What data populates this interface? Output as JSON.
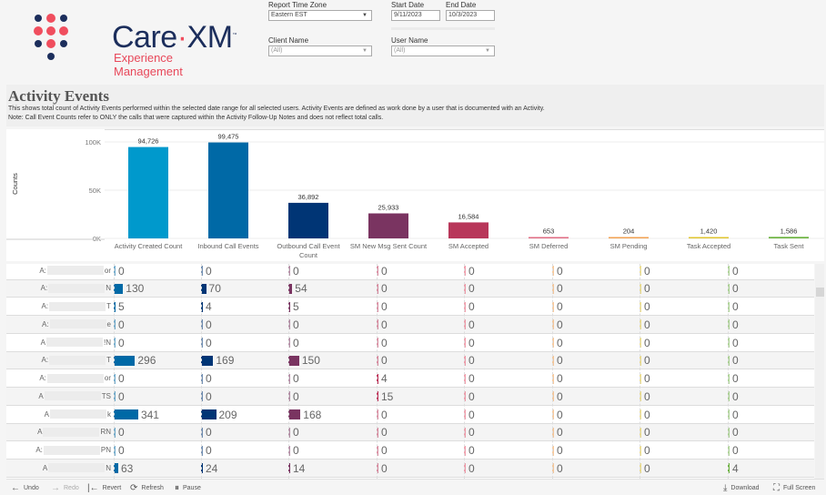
{
  "logo": {
    "word_a": "Care",
    "word_sep": "·",
    "word_b": "XM",
    "tm": "™",
    "subtitle": "Experience Management"
  },
  "filters": {
    "time_zone": {
      "label": "Report Time Zone",
      "value": "Eastern EST"
    },
    "start_date": {
      "label": "Start Date",
      "value": "9/11/2023"
    },
    "end_date": {
      "label": "End Date",
      "value": "10/3/2023"
    },
    "client": {
      "label": "Client Name",
      "value": "(All)"
    },
    "user": {
      "label": "User Name",
      "value": "(All)"
    }
  },
  "header": {
    "title": "Activity Events",
    "line1": "This shows total count of Activity Events performed within the selected date range for all selected users. Activity Events are defined as work done by a user that is documented with an Activity.",
    "line2": "Note: Call Event Counts refer to ONLY the calls that were captured within the Activity Follow-Up Notes and does not reflect total calls."
  },
  "chart_data": {
    "type": "bar",
    "ylabel": "Counts",
    "ylim": [
      0,
      100000
    ],
    "yticks": [
      {
        "v": 0,
        "label": "0K"
      },
      {
        "v": 50000,
        "label": "50K"
      },
      {
        "v": 100000,
        "label": "100K"
      }
    ],
    "grid": true,
    "categories": [
      "Activity Created Count",
      "Inbound Call Events",
      "Outbound Call Event Count",
      "SM New Msg Sent Count",
      "SM Accepted",
      "SM Deferred",
      "SM Pending",
      "Task Accepted",
      "Task Sent"
    ],
    "values": [
      94726,
      99475,
      36892,
      25933,
      16584,
      653,
      204,
      1420,
      1586
    ],
    "labels": [
      "94,726",
      "99,475",
      "36,892",
      "25,933",
      "16,584",
      "653",
      "204",
      "1,420",
      "1,586"
    ],
    "colors": [
      "#0099cc",
      "#0069a6",
      "#003575",
      "#7a3461",
      "#b8375a",
      "#e06b82",
      "#f2a150",
      "#e0c530",
      "#6cb33f"
    ]
  },
  "table": {
    "column_colors": [
      "#0069a6",
      "#003575",
      "#7a3461",
      "#c0335a",
      "#e8506a",
      "#f2a150",
      "#e0c530",
      "#6cb33f"
    ],
    "rows": [
      {
        "pre": "A:",
        "suf": "or",
        "values": [
          0,
          0,
          0,
          0,
          0,
          0,
          0,
          0
        ]
      },
      {
        "pre": "A:",
        "suf": "N",
        "values": [
          130,
          70,
          54,
          0,
          0,
          0,
          0,
          0
        ]
      },
      {
        "pre": "A:",
        "suf": "T",
        "values": [
          5,
          4,
          5,
          0,
          0,
          0,
          0,
          0
        ]
      },
      {
        "pre": "A:",
        "suf": "e",
        "values": [
          0,
          0,
          0,
          0,
          0,
          0,
          0,
          0
        ]
      },
      {
        "pre": "A",
        "suf": "!N",
        "values": [
          0,
          0,
          0,
          0,
          0,
          0,
          0,
          0
        ]
      },
      {
        "pre": "A:",
        "suf": "T",
        "values": [
          296,
          169,
          150,
          0,
          0,
          0,
          0,
          0
        ]
      },
      {
        "pre": "A:",
        "suf": "or",
        "values": [
          0,
          0,
          0,
          4,
          0,
          0,
          0,
          0
        ]
      },
      {
        "pre": "A",
        "suf": "TS",
        "values": [
          0,
          0,
          0,
          15,
          0,
          0,
          0,
          0
        ]
      },
      {
        "pre": "A",
        "suf": "k",
        "values": [
          341,
          209,
          168,
          0,
          0,
          0,
          0,
          0
        ]
      },
      {
        "pre": "A",
        "suf": "RN",
        "values": [
          0,
          0,
          0,
          0,
          0,
          0,
          0,
          0
        ]
      },
      {
        "pre": "A:",
        "suf": "PN",
        "values": [
          0,
          0,
          0,
          0,
          0,
          0,
          0,
          0
        ]
      },
      {
        "pre": "A",
        "suf": "N",
        "values": [
          63,
          24,
          14,
          0,
          0,
          0,
          0,
          4
        ]
      }
    ]
  },
  "toolbar": {
    "undo": "Undo",
    "redo": "Redo",
    "revert": "Revert",
    "refresh": "Refresh",
    "pause": "Pause",
    "download": "Download",
    "fullscreen": "Full Screen"
  }
}
